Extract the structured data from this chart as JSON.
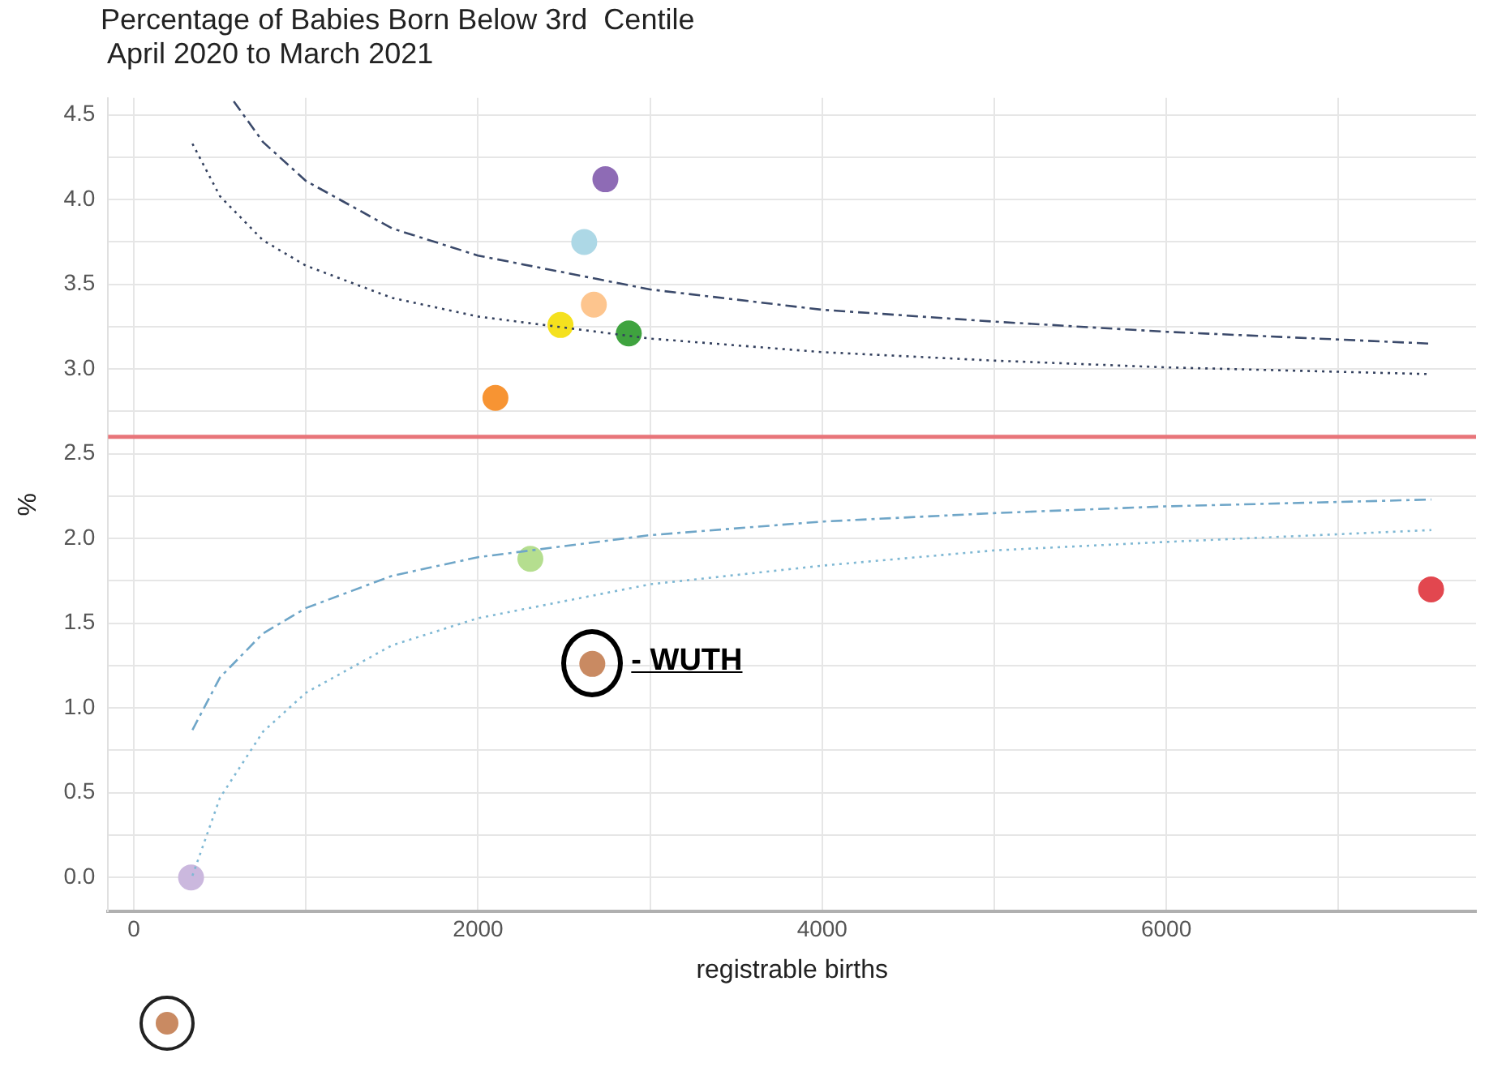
{
  "chart_data": {
    "type": "scatter",
    "title": "Percentage of Babies Born Below 3rd  Centile",
    "subtitle": "April 2020 to March 2021",
    "xlabel": "registrable births",
    "ylabel": "%",
    "xlim": [
      -150,
      7800
    ],
    "xticks": [
      0,
      {
        "value": 1000,
        "label": null
      },
      2000,
      {
        "value": 3000,
        "label": null
      },
      4000,
      {
        "value": 5000,
        "label": null
      },
      6000,
      {
        "value": 7000,
        "label": null
      }
    ],
    "ylim": [
      -0.2,
      4.6
    ],
    "yticks": [
      "0.0",
      {
        "value": 0.25,
        "label": null
      },
      {
        "value": 0.5,
        "label": "0.5"
      },
      {
        "value": 0.75,
        "label": null
      },
      {
        "value": 1,
        "label": "1.0"
      },
      {
        "value": 1.25,
        "label": null
      },
      {
        "value": 1.5,
        "label": "1.5"
      },
      {
        "value": 1.75,
        "label": null
      },
      {
        "value": 2,
        "label": "2.0"
      },
      {
        "value": 2.25,
        "label": null
      },
      {
        "value": 2.5,
        "label": "2.5"
      },
      {
        "value": 2.75,
        "label": null
      },
      {
        "value": 3,
        "label": "3.0"
      },
      {
        "value": 3.25,
        "label": null
      },
      {
        "value": 3.5,
        "label": "3.5"
      },
      {
        "value": 3.75,
        "label": null
      },
      {
        "value": 4,
        "label": "4.0"
      },
      {
        "value": 4.25,
        "label": null
      },
      {
        "value": 4.5,
        "label": "4.5"
      }
    ],
    "grid": true,
    "legend": false,
    "marker": "circle",
    "ref_lines": [
      {
        "axis": "y",
        "value": 2.6,
        "color": "#e8757a"
      }
    ],
    "series": [
      {
        "type": "line",
        "color": "#3b4a6b",
        "line_style": "dashed",
        "marker": "none",
        "x": [
          580,
          750,
          1000,
          1500,
          2000,
          3000,
          4000,
          5000,
          6000,
          7540
        ],
        "values": [
          4.58,
          4.34,
          4.11,
          3.83,
          3.67,
          3.47,
          3.35,
          3.28,
          3.22,
          3.15
        ]
      },
      {
        "type": "line",
        "color": "#33405e",
        "line_style": "dotted",
        "marker": "none",
        "x": [
          340,
          500,
          750,
          1000,
          1500,
          2000,
          3000,
          4000,
          5000,
          6000,
          7540
        ],
        "values": [
          4.33,
          4.02,
          3.76,
          3.61,
          3.42,
          3.31,
          3.18,
          3.1,
          3.05,
          3.01,
          2.97
        ]
      },
      {
        "type": "line",
        "color": "#6fa6c8",
        "line_style": "dashed",
        "marker": "none",
        "x": [
          340,
          500,
          750,
          1000,
          1500,
          2000,
          3000,
          4000,
          5000,
          6000,
          7540
        ],
        "values": [
          0.87,
          1.18,
          1.44,
          1.59,
          1.78,
          1.89,
          2.02,
          2.1,
          2.15,
          2.19,
          2.23
        ]
      },
      {
        "type": "line",
        "color": "#7fb8d4",
        "line_style": "dotted",
        "marker": "none",
        "x": [
          340,
          500,
          750,
          1000,
          1500,
          2000,
          3000,
          4000,
          5000,
          6000,
          7540
        ],
        "values": [
          0.01,
          0.47,
          0.86,
          1.09,
          1.37,
          1.53,
          1.73,
          1.84,
          1.93,
          1.98,
          2.05
        ]
      },
      {
        "type": "scatter",
        "x": [
          2740,
          2617,
          2673,
          2479,
          2876,
          2101,
          2304,
          2664,
          7539,
          332
        ],
        "values": [
          4.12,
          3.75,
          3.38,
          3.26,
          3.21,
          2.83,
          1.88,
          1.26,
          1.7,
          0
        ],
        "colors": [
          "#8e6bb5",
          "#add8e6",
          "#fdc58e",
          "#f5e11e",
          "#3fa33f",
          "#f79433",
          "#b5de8f",
          "#c98a62",
          "#e2474f",
          "#cbb8de"
        ]
      }
    ],
    "annotations": [
      {
        "text": "- WUTH",
        "x": 2664,
        "y": 1.26
      }
    ]
  }
}
